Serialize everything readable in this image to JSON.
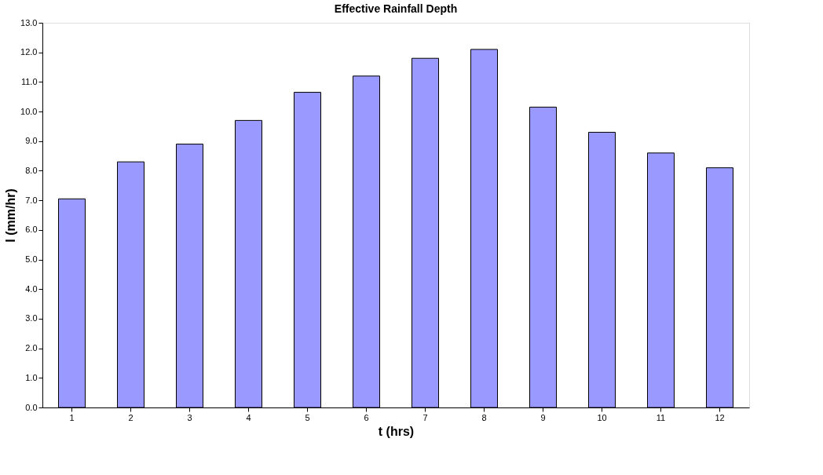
{
  "chart_data": {
    "type": "bar",
    "title": "Effective Rainfall Depth",
    "xlabel": "t (hrs)",
    "ylabel": "I (mm/hr)",
    "categories": [
      "1",
      "2",
      "3",
      "4",
      "5",
      "6",
      "7",
      "8",
      "9",
      "10",
      "11",
      "12"
    ],
    "values": [
      7.05,
      8.3,
      8.9,
      9.7,
      10.65,
      11.2,
      11.8,
      12.1,
      10.15,
      9.3,
      8.6,
      8.1
    ],
    "color": "#9999ff",
    "ylim": [
      0,
      13
    ],
    "yticks": [
      {
        "value": 0,
        "label": "0.0"
      },
      {
        "value": 1,
        "label": "1.0"
      },
      {
        "value": 2,
        "label": "2.0"
      },
      {
        "value": 3,
        "label": "3.0"
      },
      {
        "value": 4,
        "label": "4.0"
      },
      {
        "value": 5,
        "label": "5.0"
      },
      {
        "value": 6,
        "label": "6.0"
      },
      {
        "value": 7,
        "label": "7.0"
      },
      {
        "value": 8,
        "label": "8.0"
      },
      {
        "value": 9,
        "label": "9.0"
      },
      {
        "value": 10,
        "label": "10.0"
      },
      {
        "value": 11,
        "label": "11.0"
      },
      {
        "value": 12,
        "label": "12.0"
      },
      {
        "value": 13,
        "label": "13.0"
      }
    ],
    "grid": false
  }
}
